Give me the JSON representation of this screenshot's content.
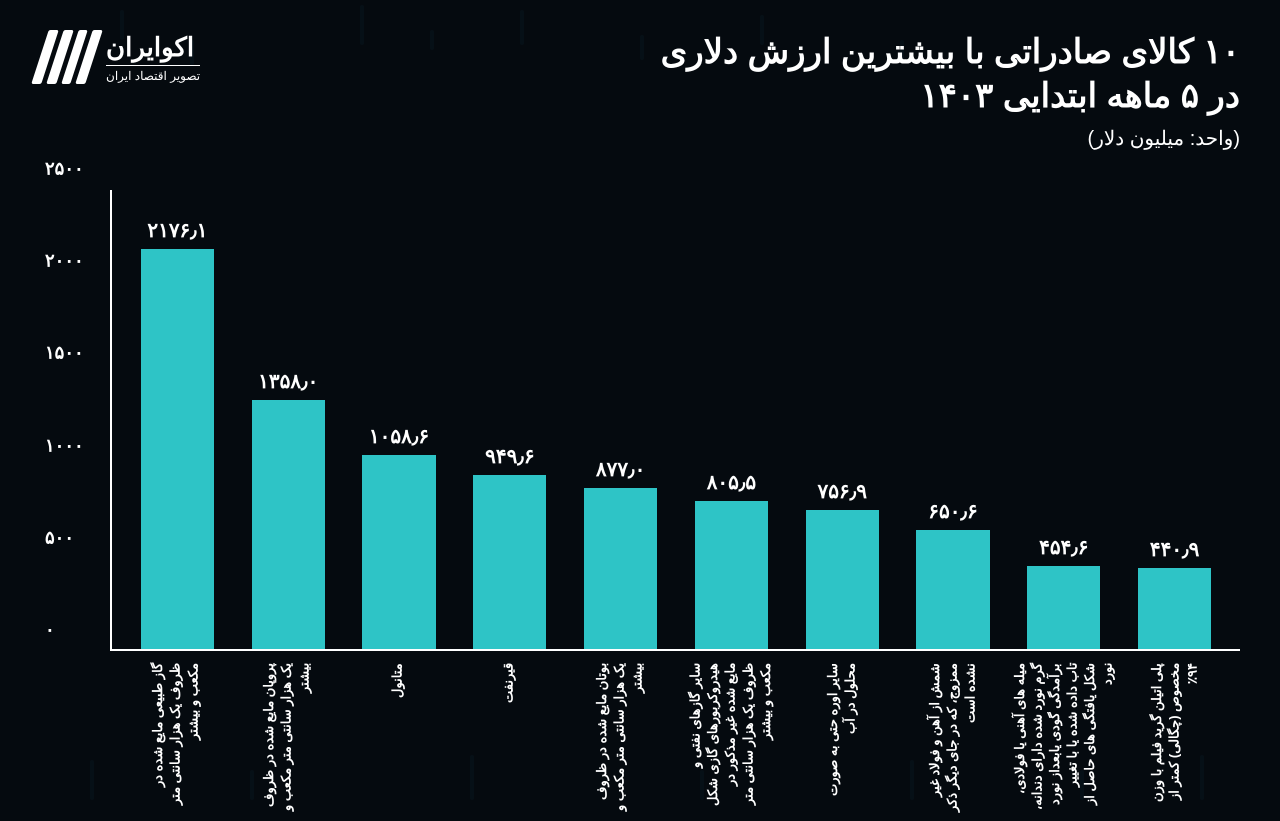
{
  "brand": {
    "name": "اکوایران",
    "subtitle": "تصویر اقتصاد ایران"
  },
  "title_line1": "۱۰ کالای صادراتی  با بیشترین ارزش دلاری",
  "title_line2": "در ۵ ماهه ابتدایی ۱۴۰۳",
  "unit": "(واحد: میلیون دلار)",
  "chart": {
    "type": "bar",
    "bar_color": "#2ec4c6",
    "axis_color": "#ffffff",
    "background_color": "#050a0f",
    "text_color": "#ffffff",
    "value_fontsize": 20,
    "label_fontsize": 13,
    "ytick_fontsize": 18,
    "ylim": [
      0,
      2500
    ],
    "ytick_step": 500,
    "yticks": [
      {
        "v": 0,
        "label": "۰"
      },
      {
        "v": 500,
        "label": "۵۰۰"
      },
      {
        "v": 1000,
        "label": "۱۰۰۰"
      },
      {
        "v": 1500,
        "label": "۱۵۰۰"
      },
      {
        "v": 2000,
        "label": "۲۰۰۰"
      },
      {
        "v": 2500,
        "label": "۲۵۰۰"
      }
    ],
    "bars": [
      {
        "value": 2176.1,
        "value_label": "۲۱۷۶٫۱",
        "label": "گاز طبیعی مایع شده در ظروف یک هزار سانتی متر مکعب و بیشتر"
      },
      {
        "value": 1358.0,
        "value_label": "۱۳۵۸٫۰",
        "label": "پروپان مایع شده در ظروف یک هزار سانتی متر مکعب و بیشتر"
      },
      {
        "value": 1058.6,
        "value_label": "۱۰۵۸٫۶",
        "label": "متانول"
      },
      {
        "value": 949.6,
        "value_label": "۹۴۹٫۶",
        "label": "قیرنفت"
      },
      {
        "value": 877.0,
        "value_label": "۸۷۷٫۰",
        "label": "بوتان مایع شده در ظروف یک هزار سانتی متر مکعب و بیشتر"
      },
      {
        "value": 805.5,
        "value_label": "۸۰۵٫۵",
        "label": "سایر گازهای نفتی و هیدروکربورهای گازی شکل مایع شده غیر مذکور در ظروف یک هزار سانتی متر مکعب و بیشتر"
      },
      {
        "value": 756.9,
        "value_label": "۷۵۶٫۹",
        "label": "سایر اوره حتی به صورت محلول در آب"
      },
      {
        "value": 650.6,
        "value_label": "۶۵۰٫۶",
        "label": "شمش از آهن و فولاد غیر ممزوج، که در جای دیگر ذکر نشده است"
      },
      {
        "value": 454.6,
        "value_label": "۴۵۴٫۶",
        "label": "میله های آهنی یا فولادی، گرم نورد شده دارای دندانه، برآمدگی گودی یابعداز نورد تاب داده شده یا با تغییر شکل یافتگی های حاصل از نورد"
      },
      {
        "value": 440.9,
        "value_label": "۴۴۰٫۹",
        "label": "پلی اتیلن گرید فیلم با وزن مخصوص (چگالی) کمتر از ۹۴٪"
      }
    ]
  }
}
